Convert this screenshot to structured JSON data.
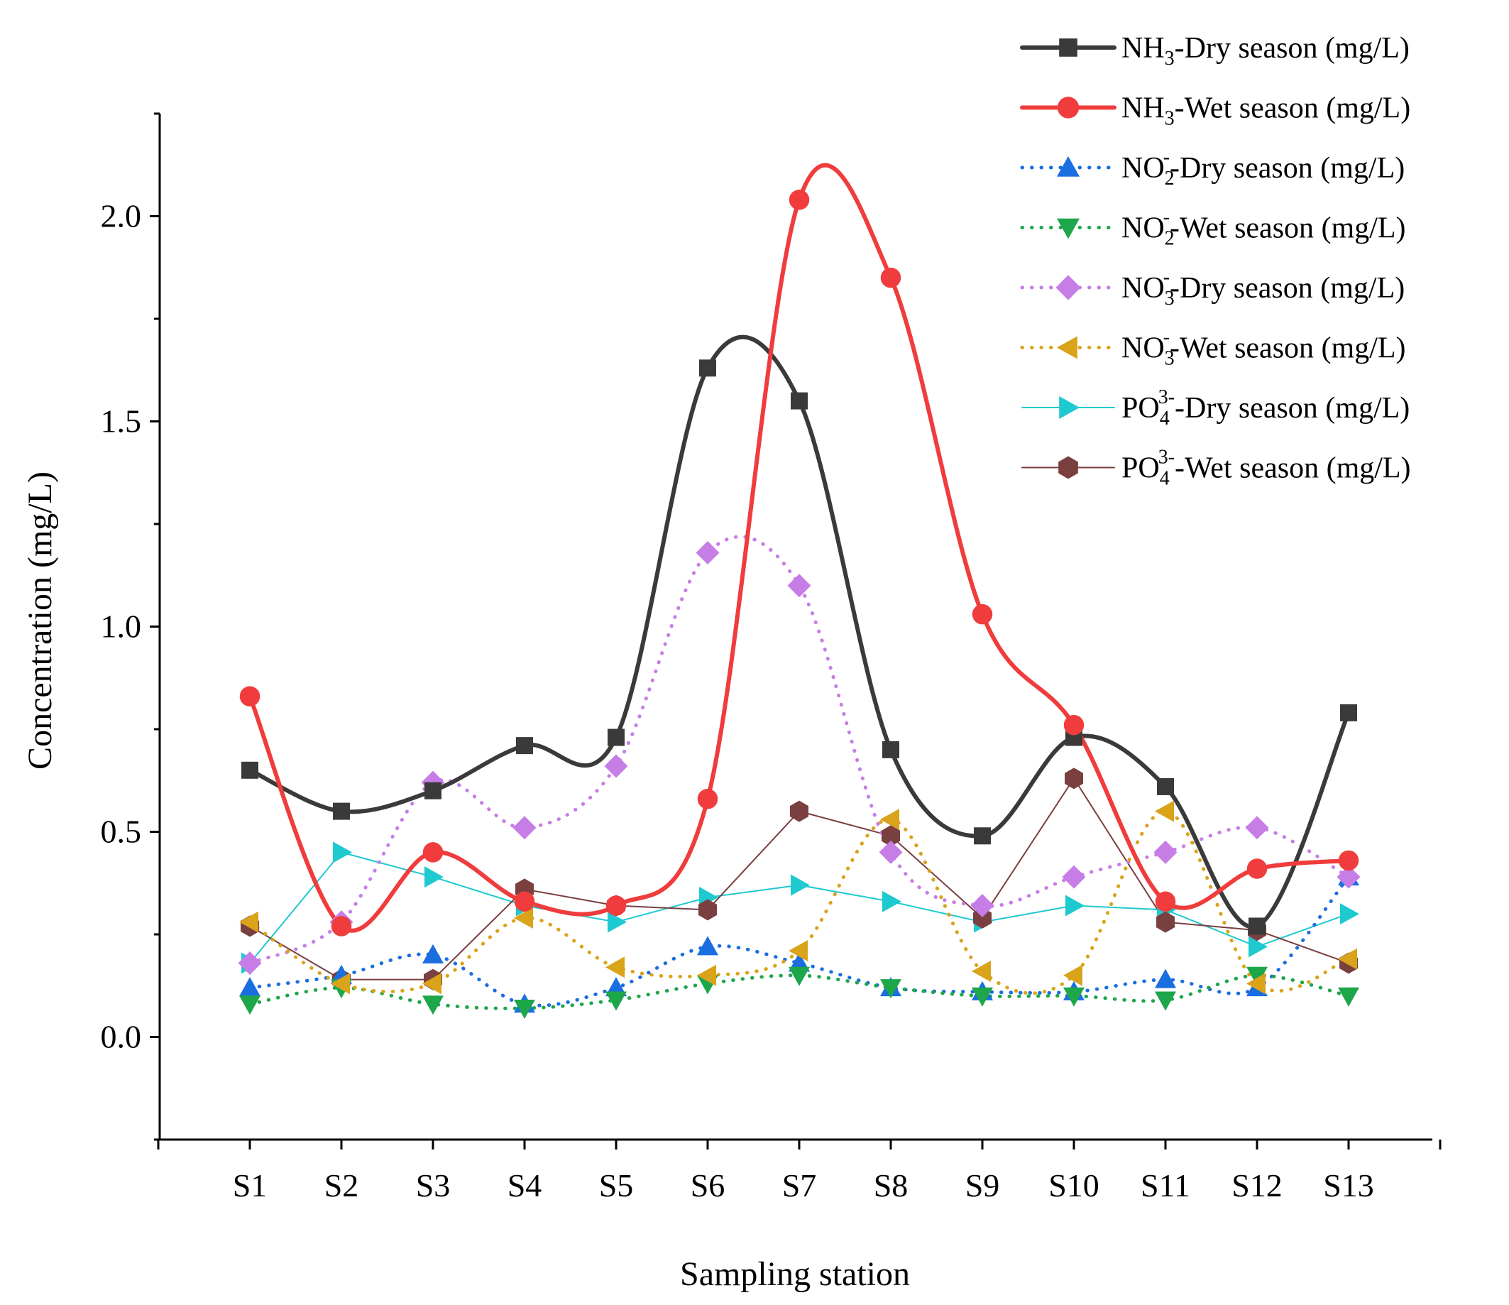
{
  "chart_data": {
    "type": "line",
    "title": "",
    "xlabel": "Sampling station",
    "ylabel": "Concentration (mg/L)",
    "ylim": [
      -0.25,
      2.25
    ],
    "yticks": [
      0.0,
      0.5,
      1.0,
      1.5,
      2.0
    ],
    "ytick_labels": [
      "0.0",
      "0.5",
      "1.0",
      "1.5",
      "2.0"
    ],
    "grid": false,
    "legend_position": "top-right",
    "categories": [
      "S1",
      "S2",
      "S3",
      "S4",
      "S5",
      "S6",
      "S7",
      "S8",
      "S9",
      "S10",
      "S11",
      "S12",
      "S13"
    ],
    "series": [
      {
        "name": "NH3-Dry season (mg/L)",
        "legend": {
          "pre": "NH",
          "sub": "3",
          "sup": "",
          "post": "-Dry season (mg/L)"
        },
        "values": [
          0.65,
          0.55,
          0.6,
          0.71,
          0.73,
          1.63,
          1.55,
          0.7,
          0.49,
          0.73,
          0.61,
          0.27,
          0.79
        ],
        "color": "#3a3a3a",
        "marker": "square",
        "line_style": "solid",
        "smooth": true
      },
      {
        "name": "NH3-Wet season (mg/L)",
        "legend": {
          "pre": "NH",
          "sub": "3",
          "sup": "",
          "post": "-Wet season (mg/L)"
        },
        "values": [
          0.83,
          0.27,
          0.45,
          0.33,
          0.32,
          0.58,
          2.04,
          1.85,
          1.03,
          0.76,
          0.33,
          0.41,
          0.43
        ],
        "color": "#f03c3c",
        "marker": "circle",
        "line_style": "solid",
        "smooth": true
      },
      {
        "name": "NO2--Dry season (mg/L)",
        "legend": {
          "pre": "NO",
          "sub": "2",
          "sup": "-",
          "post": "-Dry season (mg/L)"
        },
        "values": [
          0.12,
          0.15,
          0.2,
          0.08,
          0.12,
          0.22,
          0.18,
          0.12,
          0.11,
          0.11,
          0.14,
          0.12,
          0.39
        ],
        "color": "#1a6ee0",
        "marker": "triangle-up",
        "line_style": "dotted",
        "smooth": true
      },
      {
        "name": "NO2--Wet season (mg/L)",
        "legend": {
          "pre": "NO",
          "sub": "2",
          "sup": "-",
          "post": "-Wet season (mg/L)"
        },
        "values": [
          0.08,
          0.12,
          0.08,
          0.07,
          0.09,
          0.13,
          0.15,
          0.12,
          0.1,
          0.1,
          0.09,
          0.15,
          0.1
        ],
        "color": "#1ea64a",
        "marker": "triangle-down",
        "line_style": "dotted",
        "smooth": true
      },
      {
        "name": "NO3--Dry season (mg/L)",
        "legend": {
          "pre": "NO",
          "sub": "3",
          "sup": "-",
          "post": "-Dry season (mg/L)"
        },
        "values": [
          0.18,
          0.28,
          0.62,
          0.51,
          0.66,
          1.18,
          1.1,
          0.45,
          0.32,
          0.39,
          0.45,
          0.51,
          0.39
        ],
        "color": "#c77de6",
        "marker": "diamond",
        "line_style": "dotted",
        "smooth": true
      },
      {
        "name": "NO3--Wet season (mg/L)",
        "legend": {
          "pre": "NO",
          "sub": "3",
          "sup": "-",
          "post": "-Wet season (mg/L)"
        },
        "values": [
          0.28,
          0.13,
          0.13,
          0.29,
          0.17,
          0.15,
          0.21,
          0.53,
          0.16,
          0.15,
          0.55,
          0.13,
          0.19
        ],
        "color": "#d9a31a",
        "marker": "triangle-left",
        "line_style": "dotted",
        "smooth": true
      },
      {
        "name": "PO43--Dry season (mg/L)",
        "legend": {
          "pre": "PO",
          "sub": "4",
          "sup": "3-",
          "post": "-Dry season (mg/L)"
        },
        "values": [
          0.18,
          0.45,
          0.39,
          0.32,
          0.28,
          0.34,
          0.37,
          0.33,
          0.28,
          0.32,
          0.31,
          0.22,
          0.3
        ],
        "color": "#1ec9d0",
        "marker": "triangle-right",
        "line_style": "solid-thin",
        "smooth": false
      },
      {
        "name": "PO43--Wet season (mg/L)",
        "legend": {
          "pre": "PO",
          "sub": "4",
          "sup": "3-",
          "post": "-Wet season (mg/L)"
        },
        "values": [
          0.27,
          0.14,
          0.14,
          0.36,
          0.32,
          0.31,
          0.55,
          0.49,
          0.29,
          0.63,
          0.28,
          0.26,
          0.18
        ],
        "color": "#7a3f3f",
        "marker": "hexagon",
        "line_style": "solid-thin",
        "smooth": false
      }
    ]
  }
}
